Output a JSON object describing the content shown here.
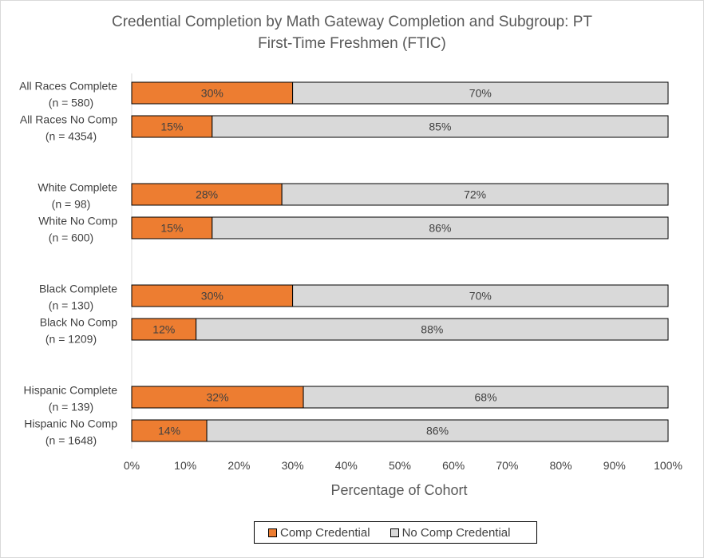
{
  "chart_data": {
    "type": "bar",
    "orientation": "horizontal",
    "stacked": true,
    "title": [
      "Credential Completion by Math Gateway Completion and Subgroup: PT",
      "First-Time Freshmen (FTIC)"
    ],
    "xlabel": "Percentage of Cohort",
    "ylabel": "",
    "xlim": [
      0,
      100
    ],
    "x_ticks": [
      "0%",
      "10%",
      "20%",
      "30%",
      "40%",
      "50%",
      "60%",
      "70%",
      "80%",
      "90%",
      "100%"
    ],
    "grid": false,
    "legend_position": "bottom",
    "groups": [
      {
        "categories": [
          {
            "line1": "All Races Complete",
            "line2": "(n = 580)"
          },
          {
            "line1": "All Races No Comp",
            "line2": "(n = 4354)"
          }
        ]
      },
      {
        "categories": [
          {
            "line1": "White Complete",
            "line2": "(n = 98)"
          },
          {
            "line1": "White No Comp",
            "line2": "(n = 600)"
          }
        ]
      },
      {
        "categories": [
          {
            "line1": "Black Complete",
            "line2": "(n = 130)"
          },
          {
            "line1": "Black No Comp",
            "line2": "(n = 1209)"
          }
        ]
      },
      {
        "categories": [
          {
            "line1": "Hispanic Complete",
            "line2": "(n = 139)"
          },
          {
            "line1": "Hispanic No Comp",
            "line2": "(n = 1648)"
          }
        ]
      }
    ],
    "series": [
      {
        "name": "Comp Credential",
        "color": "#ed7d31",
        "values": [
          30,
          15,
          28,
          15,
          30,
          12,
          32,
          14
        ],
        "labels": [
          "30%",
          "15%",
          "28%",
          "15%",
          "30%",
          "12%",
          "32%",
          "14%"
        ]
      },
      {
        "name": "No Comp Credential",
        "color": "#d9d9d9",
        "values": [
          70,
          85,
          72,
          86,
          70,
          88,
          68,
          86
        ],
        "labels": [
          "70%",
          "85%",
          "72%",
          "86%",
          "70%",
          "88%",
          "68%",
          "86%"
        ]
      }
    ]
  }
}
